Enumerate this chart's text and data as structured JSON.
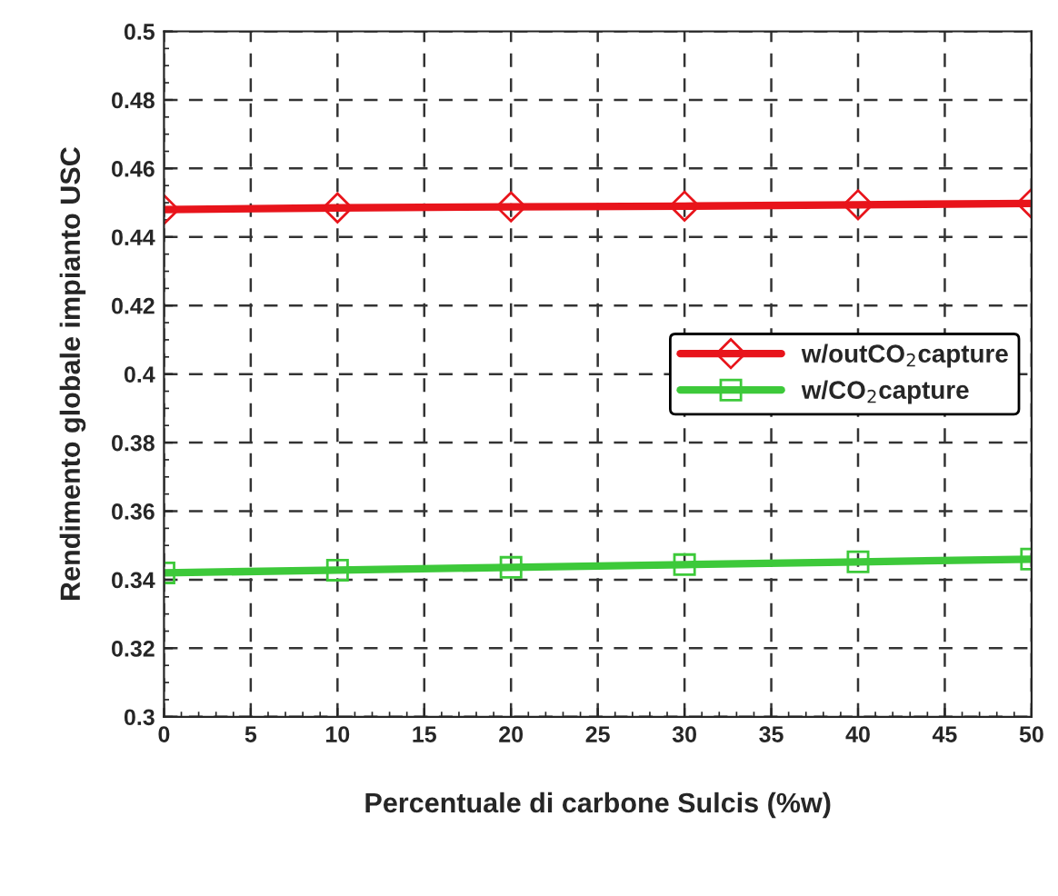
{
  "chart_data": {
    "type": "line",
    "xlabel": "Percentuale di carbone Sulcis (%w)",
    "ylabel": "Rendimento globale impianto USC",
    "x": [
      0,
      10,
      20,
      30,
      40,
      50
    ],
    "series": [
      {
        "name": "w/outCO$_{2}$capture",
        "color": "#e8141b",
        "marker": "diamond",
        "values": [
          0.448,
          0.4485,
          0.4488,
          0.449,
          0.4494,
          0.4498
        ]
      },
      {
        "name": "w/CO$_{2}$capture",
        "color": "#3dc93a",
        "marker": "square",
        "values": [
          0.342,
          0.3428,
          0.3436,
          0.3444,
          0.3452,
          0.346
        ]
      }
    ],
    "xlim": [
      0,
      50
    ],
    "xticks": [
      0,
      5,
      10,
      15,
      20,
      25,
      30,
      35,
      40,
      45,
      50
    ],
    "ylim": [
      0.3,
      0.5
    ],
    "yticks": [
      0.3,
      0.32,
      0.34,
      0.36,
      0.38,
      0.4,
      0.42,
      0.44,
      0.46,
      0.48,
      0.5
    ],
    "grid": true,
    "legend": "center right",
    "line_style": "solid"
  }
}
